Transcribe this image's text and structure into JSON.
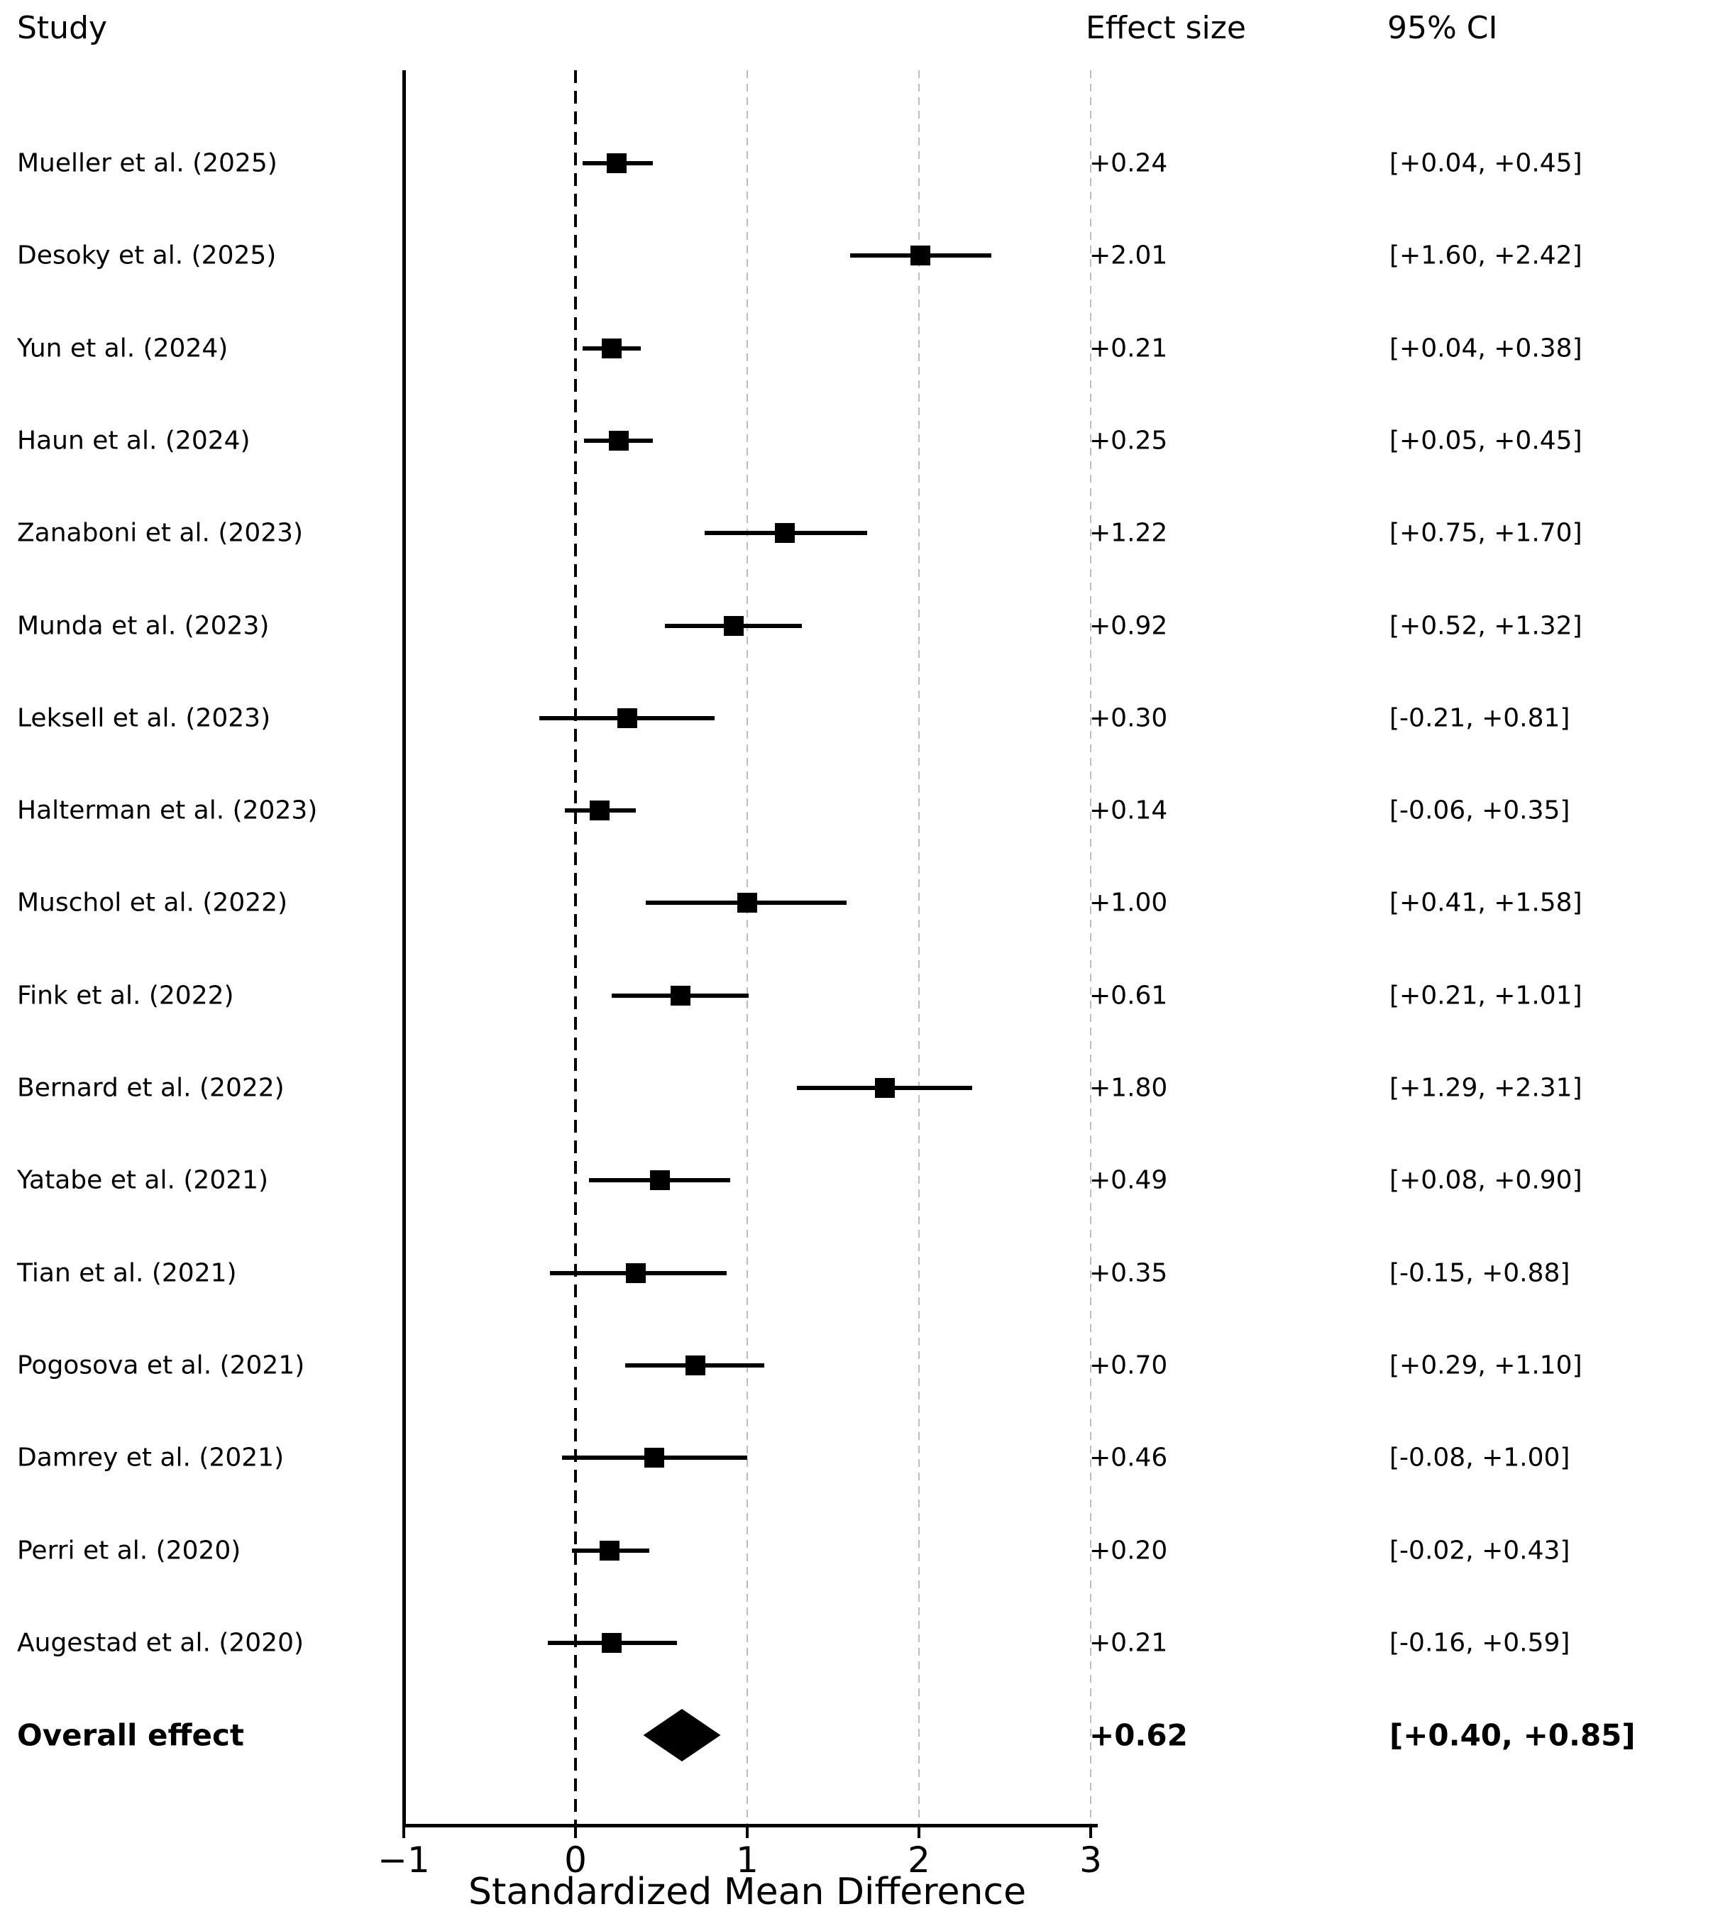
{
  "columns": {
    "study": "Study",
    "effect": "Effect size",
    "ci": "95% CI"
  },
  "chart_data": {
    "type": "forest",
    "title": "",
    "xlabel": "Standardized Mean Difference",
    "xlim": [
      -1,
      3
    ],
    "xtick_values": [
      -1,
      0,
      1,
      2,
      3
    ],
    "xtick_labels": [
      "−1",
      "0",
      "1",
      "2",
      "3"
    ],
    "zero_line_value": 0,
    "gridline_values": [
      1,
      2,
      3
    ],
    "grid_on": true,
    "colors": {
      "marker": "#000000",
      "ci_line": "#000000",
      "zero_line": "#000000",
      "gridline": "#bdbdbd",
      "text": "#000000",
      "background": "#ffffff"
    },
    "studies": [
      {
        "label": "Mueller et al. (2025)",
        "effect": 0.24,
        "ci_low": 0.04,
        "ci_high": 0.45,
        "effect_text": "+0.24",
        "ci_text": "[+0.04, +0.45]"
      },
      {
        "label": "Desoky et al. (2025)",
        "effect": 2.01,
        "ci_low": 1.6,
        "ci_high": 2.42,
        "effect_text": "+2.01",
        "ci_text": "[+1.60, +2.42]"
      },
      {
        "label": "Yun et al. (2024)",
        "effect": 0.21,
        "ci_low": 0.04,
        "ci_high": 0.38,
        "effect_text": "+0.21",
        "ci_text": "[+0.04, +0.38]"
      },
      {
        "label": "Haun et al. (2024)",
        "effect": 0.25,
        "ci_low": 0.05,
        "ci_high": 0.45,
        "effect_text": "+0.25",
        "ci_text": "[+0.05, +0.45]"
      },
      {
        "label": "Zanaboni et al. (2023)",
        "effect": 1.22,
        "ci_low": 0.75,
        "ci_high": 1.7,
        "effect_text": "+1.22",
        "ci_text": "[+0.75, +1.70]"
      },
      {
        "label": "Munda et al. (2023)",
        "effect": 0.92,
        "ci_low": 0.52,
        "ci_high": 1.32,
        "effect_text": "+0.92",
        "ci_text": "[+0.52, +1.32]"
      },
      {
        "label": "Leksell et al. (2023)",
        "effect": 0.3,
        "ci_low": -0.21,
        "ci_high": 0.81,
        "effect_text": "+0.30",
        "ci_text": "[-0.21, +0.81]"
      },
      {
        "label": "Halterman et al. (2023)",
        "effect": 0.14,
        "ci_low": -0.06,
        "ci_high": 0.35,
        "effect_text": "+0.14",
        "ci_text": "[-0.06, +0.35]"
      },
      {
        "label": "Muschol et al. (2022)",
        "effect": 1.0,
        "ci_low": 0.41,
        "ci_high": 1.58,
        "effect_text": "+1.00",
        "ci_text": "[+0.41, +1.58]"
      },
      {
        "label": "Fink et al. (2022)",
        "effect": 0.61,
        "ci_low": 0.21,
        "ci_high": 1.01,
        "effect_text": "+0.61",
        "ci_text": "[+0.21, +1.01]"
      },
      {
        "label": "Bernard et al. (2022)",
        "effect": 1.8,
        "ci_low": 1.29,
        "ci_high": 2.31,
        "effect_text": "+1.80",
        "ci_text": "[+1.29, +2.31]"
      },
      {
        "label": "Yatabe et al. (2021)",
        "effect": 0.49,
        "ci_low": 0.08,
        "ci_high": 0.9,
        "effect_text": "+0.49",
        "ci_text": "[+0.08, +0.90]"
      },
      {
        "label": "Tian et al. (2021)",
        "effect": 0.35,
        "ci_low": -0.15,
        "ci_high": 0.88,
        "effect_text": "+0.35",
        "ci_text": "[-0.15, +0.88]"
      },
      {
        "label": "Pogosova et al. (2021)",
        "effect": 0.7,
        "ci_low": 0.29,
        "ci_high": 1.1,
        "effect_text": "+0.70",
        "ci_text": "[+0.29, +1.10]"
      },
      {
        "label": "Damrey et al. (2021)",
        "effect": 0.46,
        "ci_low": -0.08,
        "ci_high": 1.0,
        "effect_text": "+0.46",
        "ci_text": "[-0.08, +1.00]"
      },
      {
        "label": "Perri et al. (2020)",
        "effect": 0.2,
        "ci_low": -0.02,
        "ci_high": 0.43,
        "effect_text": "+0.20",
        "ci_text": "[-0.02, +0.43]"
      },
      {
        "label": "Augestad et al. (2020)",
        "effect": 0.21,
        "ci_low": -0.16,
        "ci_high": 0.59,
        "effect_text": "+0.21",
        "ci_text": "[-0.16, +0.59]"
      }
    ],
    "overall": {
      "label": "Overall effect",
      "effect": 0.62,
      "ci_low": 0.4,
      "ci_high": 0.85,
      "effect_text": "+0.62",
      "ci_text": "[+0.40, +0.85]"
    }
  }
}
